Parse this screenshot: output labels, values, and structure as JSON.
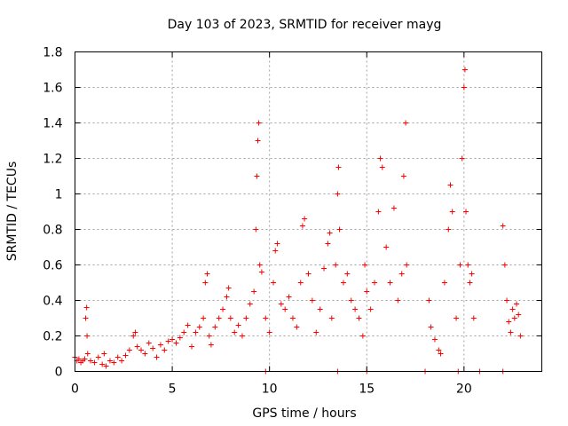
{
  "chart_data": {
    "type": "scatter",
    "title": "Day 103 of 2023, SRMTID for receiver mayg",
    "xlabel": "GPS time / hours",
    "ylabel": "SRMTID / TECUs",
    "xlim": [
      0,
      24
    ],
    "ylim": [
      0,
      1.8
    ],
    "xticks": [
      0,
      5,
      10,
      15,
      20
    ],
    "xtick_labels": [
      "0",
      "5",
      "10",
      "15",
      "20"
    ],
    "yticks": [
      0,
      0.2,
      0.4,
      0.6,
      0.8,
      1,
      1.2,
      1.4,
      1.6,
      1.8
    ],
    "ytick_labels": [
      "0",
      "0.2",
      "0.4",
      "0.6",
      "0.8",
      "1",
      "1.2",
      "1.4",
      "1.6",
      "1.8"
    ],
    "grid": true,
    "marker": "+",
    "marker_color": "#ff0000",
    "series": [
      {
        "name": "SRMTID",
        "points": [
          [
            0.0,
            0.08
          ],
          [
            0.1,
            0.06
          ],
          [
            0.2,
            0.07
          ],
          [
            0.3,
            0.05
          ],
          [
            0.4,
            0.06
          ],
          [
            0.5,
            0.07
          ],
          [
            0.55,
            0.3
          ],
          [
            0.6,
            0.36
          ],
          [
            0.62,
            0.2
          ],
          [
            0.65,
            0.1
          ],
          [
            0.8,
            0.06
          ],
          [
            1.0,
            0.05
          ],
          [
            1.2,
            0.08
          ],
          [
            1.4,
            0.04
          ],
          [
            1.5,
            0.1
          ],
          [
            1.6,
            0.03
          ],
          [
            1.8,
            0.06
          ],
          [
            2.0,
            0.05
          ],
          [
            2.2,
            0.08
          ],
          [
            2.4,
            0.06
          ],
          [
            2.6,
            0.09
          ],
          [
            2.8,
            0.12
          ],
          [
            3.0,
            0.2
          ],
          [
            3.1,
            0.22
          ],
          [
            3.2,
            0.14
          ],
          [
            3.4,
            0.12
          ],
          [
            3.6,
            0.1
          ],
          [
            3.8,
            0.16
          ],
          [
            4.0,
            0.13
          ],
          [
            4.2,
            0.08
          ],
          [
            4.4,
            0.15
          ],
          [
            4.6,
            0.12
          ],
          [
            4.8,
            0.17
          ],
          [
            5.0,
            0.18
          ],
          [
            5.2,
            0.16
          ],
          [
            5.4,
            0.19
          ],
          [
            5.6,
            0.22
          ],
          [
            5.8,
            0.26
          ],
          [
            6.0,
            0.14
          ],
          [
            6.2,
            0.22
          ],
          [
            6.4,
            0.25
          ],
          [
            6.6,
            0.3
          ],
          [
            6.7,
            0.5
          ],
          [
            6.8,
            0.55
          ],
          [
            6.9,
            0.2
          ],
          [
            7.0,
            0.15
          ],
          [
            7.2,
            0.25
          ],
          [
            7.4,
            0.3
          ],
          [
            7.6,
            0.35
          ],
          [
            7.8,
            0.42
          ],
          [
            7.9,
            0.47
          ],
          [
            8.0,
            0.3
          ],
          [
            8.2,
            0.22
          ],
          [
            8.4,
            0.26
          ],
          [
            8.6,
            0.2
          ],
          [
            8.8,
            0.3
          ],
          [
            9.0,
            0.38
          ],
          [
            9.2,
            0.45
          ],
          [
            9.3,
            0.8
          ],
          [
            9.35,
            1.1
          ],
          [
            9.4,
            1.3
          ],
          [
            9.45,
            1.4
          ],
          [
            9.5,
            0.6
          ],
          [
            9.6,
            0.56
          ],
          [
            9.8,
            0.3
          ],
          [
            10.0,
            0.22
          ],
          [
            10.2,
            0.5
          ],
          [
            10.3,
            0.68
          ],
          [
            10.4,
            0.72
          ],
          [
            10.6,
            0.38
          ],
          [
            10.8,
            0.35
          ],
          [
            11.0,
            0.42
          ],
          [
            11.2,
            0.3
          ],
          [
            11.4,
            0.25
          ],
          [
            11.6,
            0.5
          ],
          [
            11.7,
            0.82
          ],
          [
            11.8,
            0.86
          ],
          [
            12.0,
            0.55
          ],
          [
            12.2,
            0.4
          ],
          [
            12.4,
            0.22
          ],
          [
            12.6,
            0.35
          ],
          [
            12.8,
            0.58
          ],
          [
            13.0,
            0.72
          ],
          [
            13.1,
            0.78
          ],
          [
            13.2,
            0.3
          ],
          [
            13.4,
            0.6
          ],
          [
            13.5,
            1.0
          ],
          [
            13.55,
            1.15
          ],
          [
            13.6,
            0.8
          ],
          [
            13.8,
            0.5
          ],
          [
            14.0,
            0.55
          ],
          [
            14.2,
            0.4
          ],
          [
            14.4,
            0.35
          ],
          [
            14.6,
            0.3
          ],
          [
            14.8,
            0.2
          ],
          [
            14.9,
            0.6
          ],
          [
            15.0,
            0.45
          ],
          [
            15.2,
            0.35
          ],
          [
            15.4,
            0.5
          ],
          [
            15.6,
            0.9
          ],
          [
            15.7,
            1.2
          ],
          [
            15.8,
            1.15
          ],
          [
            16.0,
            0.7
          ],
          [
            16.2,
            0.5
          ],
          [
            16.4,
            0.92
          ],
          [
            16.6,
            0.4
          ],
          [
            16.8,
            0.55
          ],
          [
            16.9,
            1.1
          ],
          [
            17.0,
            1.4
          ],
          [
            17.05,
            0.6
          ],
          [
            18.2,
            0.4
          ],
          [
            18.3,
            0.25
          ],
          [
            18.5,
            0.18
          ],
          [
            18.7,
            0.12
          ],
          [
            18.8,
            0.1
          ],
          [
            19.0,
            0.5
          ],
          [
            19.2,
            0.8
          ],
          [
            19.3,
            1.05
          ],
          [
            19.4,
            0.9
          ],
          [
            19.6,
            0.3
          ],
          [
            19.8,
            0.6
          ],
          [
            19.9,
            1.2
          ],
          [
            20.0,
            1.6
          ],
          [
            20.05,
            1.7
          ],
          [
            20.1,
            0.9
          ],
          [
            20.2,
            0.6
          ],
          [
            20.3,
            0.5
          ],
          [
            20.4,
            0.55
          ],
          [
            20.5,
            0.3
          ],
          [
            22.0,
            0.82
          ],
          [
            22.1,
            0.6
          ],
          [
            22.2,
            0.4
          ],
          [
            22.3,
            0.28
          ],
          [
            22.4,
            0.22
          ],
          [
            22.5,
            0.35
          ],
          [
            22.6,
            0.3
          ],
          [
            22.7,
            0.38
          ],
          [
            22.8,
            0.32
          ],
          [
            22.9,
            0.2
          ],
          [
            9.8,
            0
          ],
          [
            13.5,
            0
          ],
          [
            15.0,
            0
          ],
          [
            18.0,
            0
          ],
          [
            19.7,
            0
          ],
          [
            20.8,
            0
          ],
          [
            22.0,
            0
          ]
        ]
      }
    ]
  }
}
